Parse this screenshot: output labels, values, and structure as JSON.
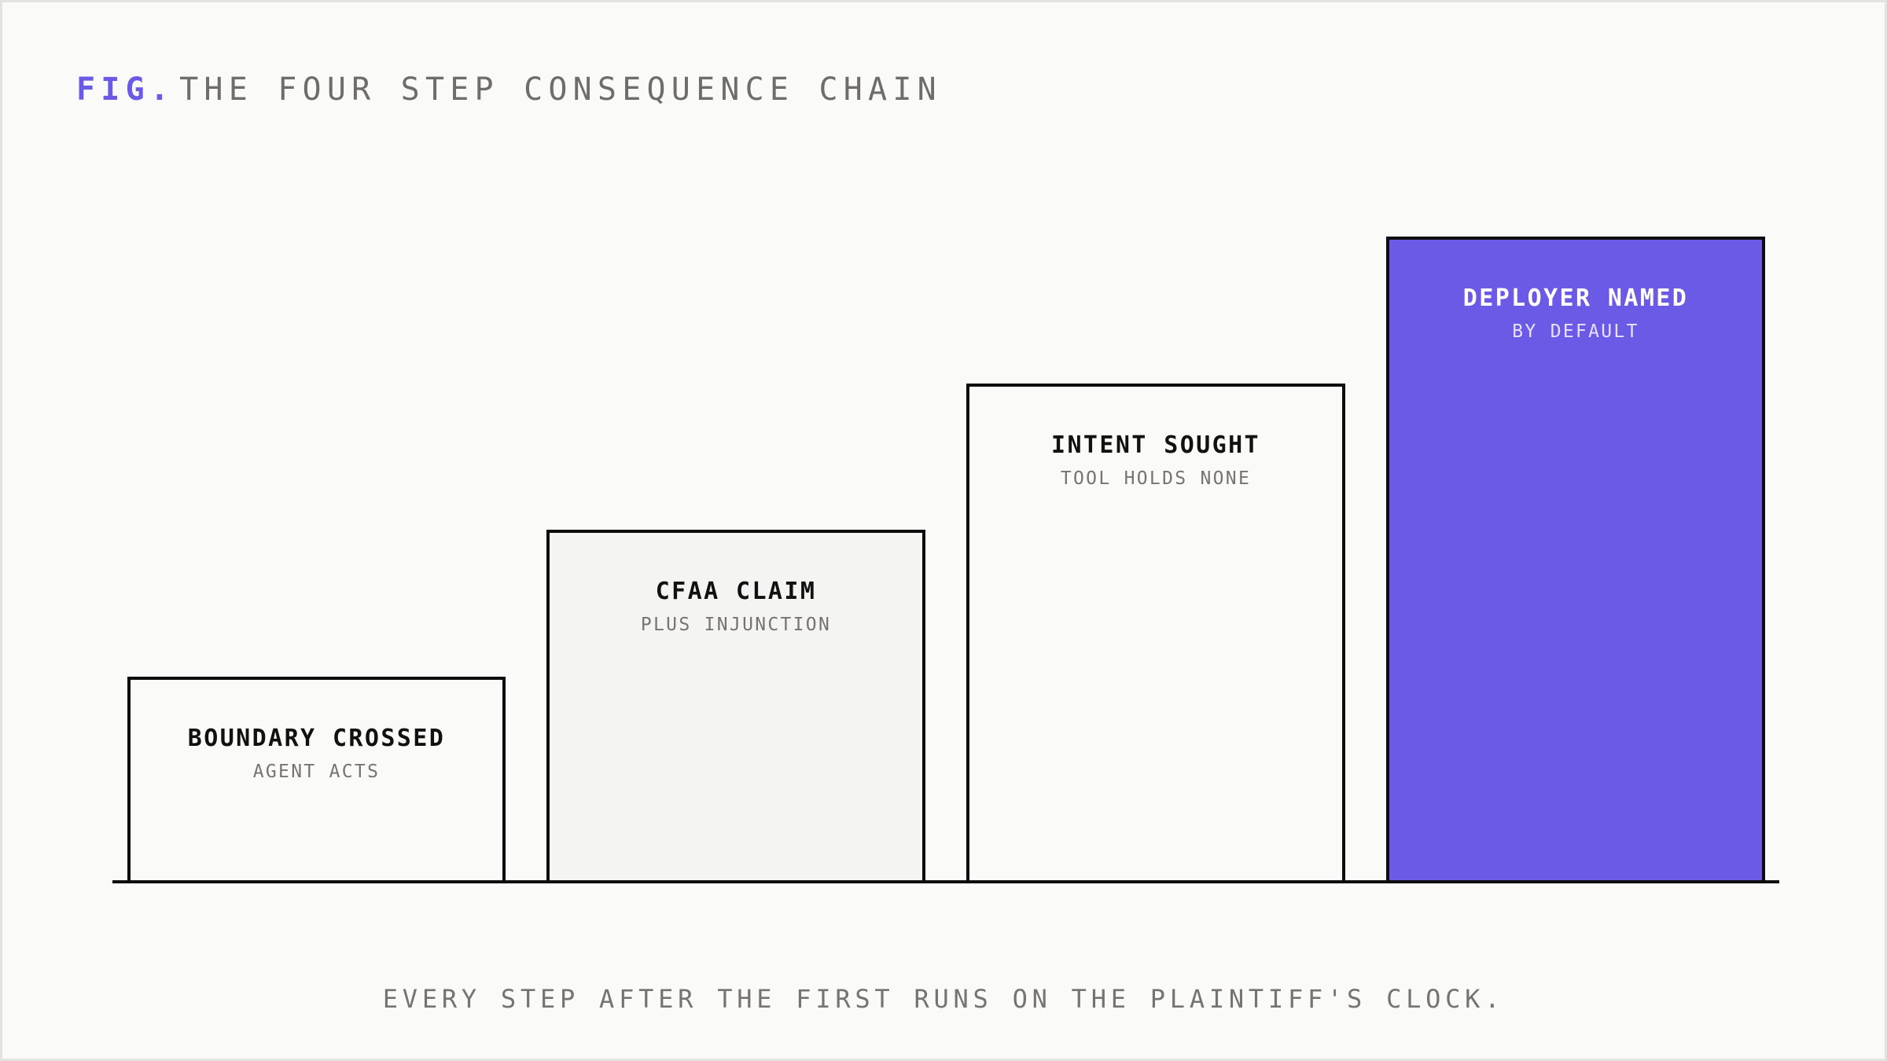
{
  "title": {
    "prefix": "FIG.",
    "text": "THE FOUR STEP CONSEQUENCE CHAIN"
  },
  "steps": [
    {
      "label": "BOUNDARY CROSSED",
      "sub": "AGENT ACTS"
    },
    {
      "label": "CFAA CLAIM",
      "sub": "PLUS INJUNCTION"
    },
    {
      "label": "INTENT SOUGHT",
      "sub": "TOOL HOLDS NONE"
    },
    {
      "label": "DEPLOYER NAMED",
      "sub": "BY DEFAULT"
    }
  ],
  "caption": "EVERY STEP AFTER THE FIRST RUNS ON THE PLAINTIFF'S CLOCK.",
  "colors": {
    "accent": "#6b5ae6",
    "outline": "#0d0d0d",
    "background": "#fafaf8",
    "muted_text": "#77736f"
  }
}
